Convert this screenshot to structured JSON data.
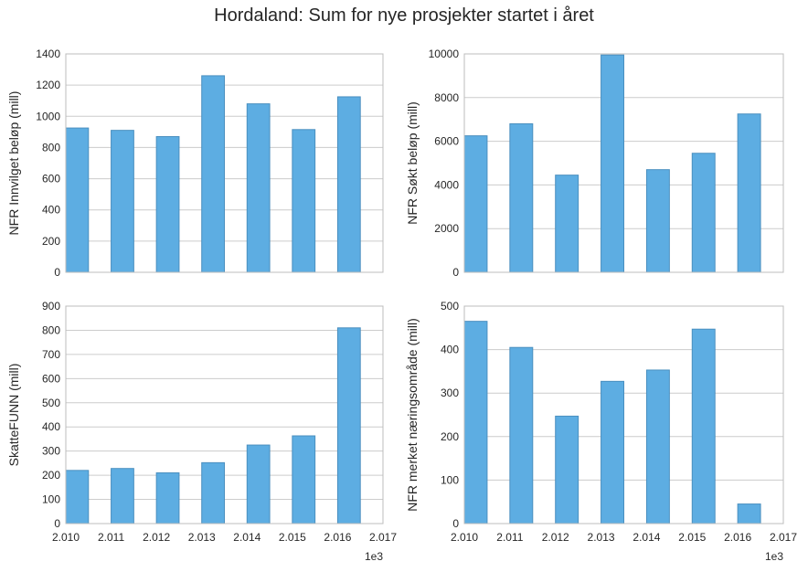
{
  "title": "Hordaland: Sum for nye prosjekter startet i året",
  "colors": {
    "bar": "#5dade2",
    "bar_edge": "#4a8fbf",
    "grid": "#cccccc",
    "frame": "#bcbcbc"
  },
  "chart_data": [
    {
      "type": "bar",
      "ylabel": "NFR Innvilget beløp (mill)",
      "x": [
        2010,
        2011,
        2012,
        2013,
        2014,
        2015,
        2016
      ],
      "values": [
        925,
        910,
        870,
        1260,
        1080,
        915,
        1125
      ],
      "ylim": [
        0,
        1400
      ],
      "yticks": [
        "0",
        "200",
        "400",
        "600",
        "800",
        "1000",
        "1200",
        "1400"
      ],
      "xticks": [],
      "grid": true
    },
    {
      "type": "bar",
      "ylabel": "NFR Søkt beløp (mill)",
      "x": [
        2010,
        2011,
        2012,
        2013,
        2014,
        2015,
        2016
      ],
      "values": [
        6250,
        6800,
        4450,
        9950,
        4700,
        5450,
        7250
      ],
      "ylim": [
        0,
        10000
      ],
      "yticks": [
        "0",
        "2000",
        "4000",
        "6000",
        "8000",
        "10000"
      ],
      "xticks": [],
      "grid": true
    },
    {
      "type": "bar",
      "ylabel": "SkatteFUNN (mill)",
      "x": [
        2010,
        2011,
        2012,
        2013,
        2014,
        2015,
        2016
      ],
      "values": [
        220,
        228,
        210,
        252,
        325,
        363,
        810
      ],
      "ylim": [
        0,
        900
      ],
      "yticks": [
        "0",
        "100",
        "200",
        "300",
        "400",
        "500",
        "600",
        "700",
        "800",
        "900"
      ],
      "xticks": [
        "2.010",
        "2.011",
        "2.012",
        "2.013",
        "2.014",
        "2.015",
        "2.016",
        "2.017"
      ],
      "x_offset_label": "1e3",
      "grid": true
    },
    {
      "type": "bar",
      "ylabel": "NFR merket næringsområde (mill)",
      "x": [
        2010,
        2011,
        2012,
        2013,
        2014,
        2015,
        2016
      ],
      "values": [
        465,
        405,
        247,
        327,
        353,
        447,
        45
      ],
      "ylim": [
        0,
        500
      ],
      "yticks": [
        "0",
        "100",
        "200",
        "300",
        "400",
        "500"
      ],
      "xticks": [
        "2.010",
        "2.011",
        "2.012",
        "2.013",
        "2.014",
        "2.015",
        "2.016",
        "2.017"
      ],
      "x_offset_label": "1e3",
      "grid": true
    }
  ]
}
